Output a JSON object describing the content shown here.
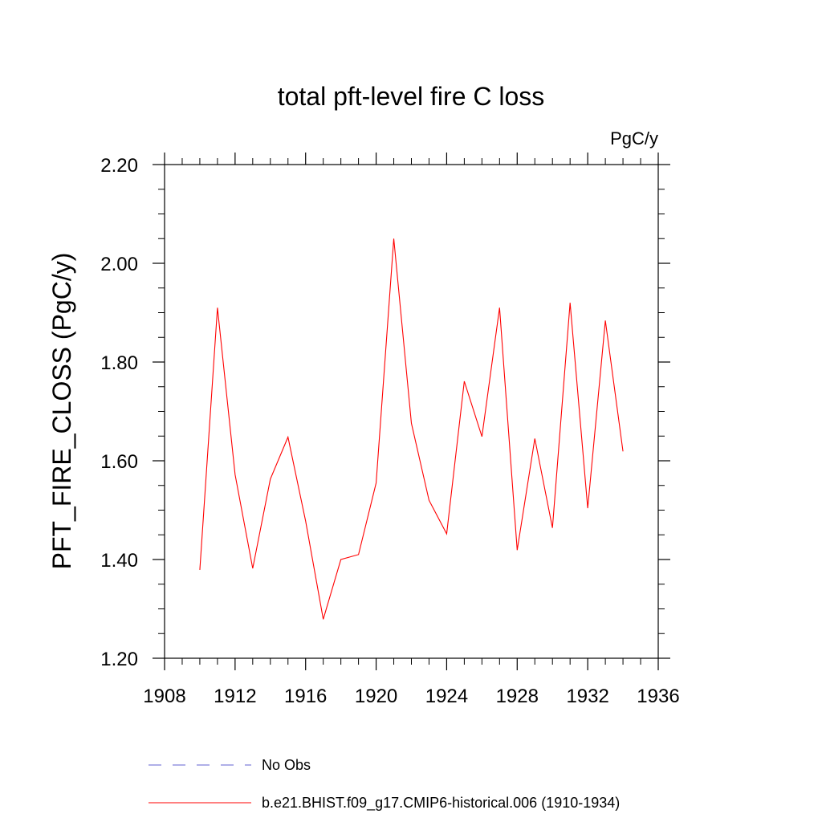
{
  "chart_data": {
    "type": "line",
    "title": "total pft-level fire C loss",
    "units_label": "PgC/y",
    "ylabel": "PFT_FIRE_CLOSS  (PgC/y)",
    "xlabel": "",
    "xlim": [
      1908,
      1936
    ],
    "ylim": [
      1.2,
      2.2
    ],
    "x_ticks": [
      1908,
      1912,
      1916,
      1920,
      1924,
      1928,
      1932,
      1936
    ],
    "y_ticks": [
      1.2,
      1.4,
      1.6,
      1.8,
      2.0,
      2.2
    ],
    "y_tick_labels": [
      "1.20",
      "1.40",
      "1.60",
      "1.80",
      "2.00",
      "2.20"
    ],
    "series": [
      {
        "name": "b.e21.BHIST.f09_g17.CMIP6-historical.006 (1910-1934)",
        "color": "#ff0000",
        "style": "solid",
        "x": [
          1910,
          1911,
          1912,
          1913,
          1914,
          1915,
          1916,
          1917,
          1918,
          1919,
          1920,
          1921,
          1922,
          1923,
          1924,
          1925,
          1926,
          1927,
          1928,
          1929,
          1930,
          1931,
          1932,
          1933,
          1934
        ],
        "values": [
          1.379,
          1.91,
          1.572,
          1.382,
          1.563,
          1.648,
          1.478,
          1.279,
          1.4,
          1.41,
          1.555,
          2.05,
          1.676,
          1.52,
          1.452,
          1.761,
          1.649,
          1.91,
          1.419,
          1.645,
          1.464,
          1.92,
          1.504,
          1.884,
          1.619
        ]
      }
    ],
    "legend": [
      {
        "label": "No Obs",
        "color": "#6060d0",
        "style": "dashed"
      },
      {
        "label": "b.e21.BHIST.f09_g17.CMIP6-historical.006 (1910-1934)",
        "color": "#ff0000",
        "style": "solid"
      }
    ],
    "legend_position": "bottom"
  }
}
